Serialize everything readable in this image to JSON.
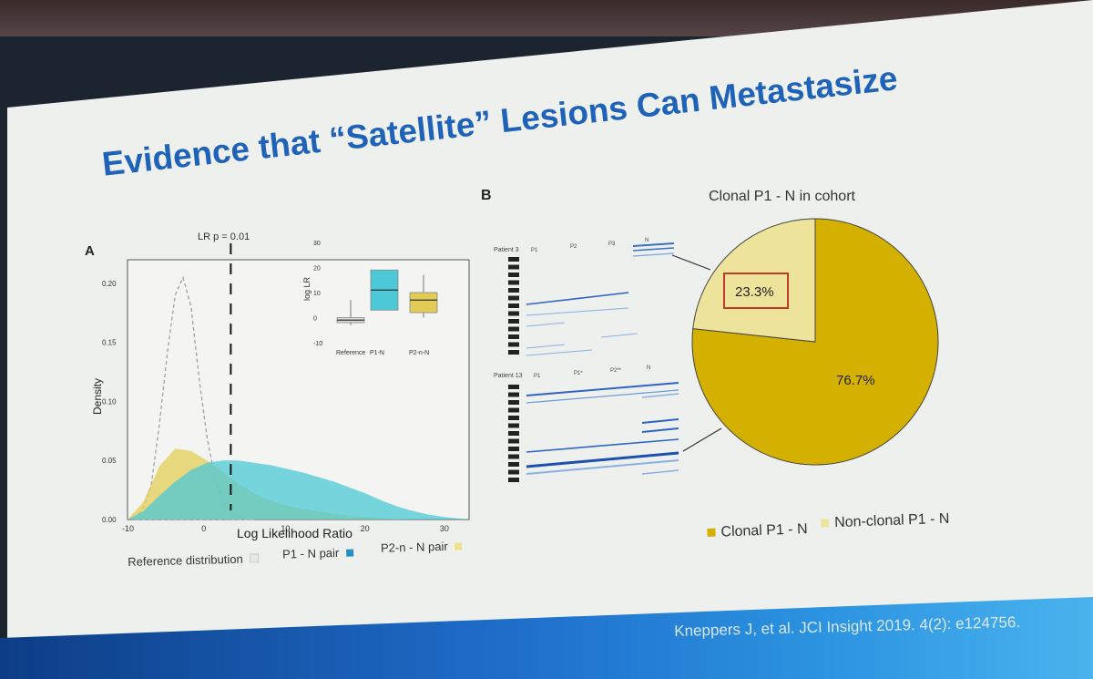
{
  "slide": {
    "title": "Evidence that “Satellite” Lesions Can Metastasize",
    "citation": "Kneppers J, et al. JCI Insight 2019. 4(2): e124756."
  },
  "panel_a": {
    "label": "A",
    "annotation": "LR p = 0.01",
    "legend": [
      "Reference distribution",
      "P1 - N pair",
      "P2-n - N pair"
    ]
  },
  "panel_b": {
    "label": "B",
    "patient_labels": [
      "Patient 3",
      "Patient 13"
    ],
    "column_labels_top": [
      "P1",
      "P2",
      "P3",
      "N"
    ],
    "column_labels_bottom": [
      "P1",
      "P1*",
      "P2**",
      "N"
    ]
  },
  "colors": {
    "reference": "#9a9a9a",
    "p1_n": "#4cc8d6",
    "p2n_n": "#e3cc56",
    "clonal": "#d4b100",
    "non_clonal": "#ede39a",
    "title": "#1f63b8",
    "highlight_box": "#c0392b"
  },
  "chart_data": [
    {
      "type": "area",
      "title": "",
      "xlabel": "Log Likelihood Ratio",
      "ylabel": "Density",
      "xlim": [
        -10,
        33
      ],
      "ylim": [
        0,
        0.22
      ],
      "x_ticks": [
        -10,
        0,
        10,
        20,
        30
      ],
      "y_ticks": [
        0.0,
        0.05,
        0.1,
        0.15,
        0.2
      ],
      "x_tick_labels": [
        "-10",
        "0",
        "10",
        "20",
        "30"
      ],
      "y_tick_labels": [
        "0.00",
        "0.05",
        "0.10",
        "0.15",
        "0.20"
      ],
      "vline": {
        "x": 3,
        "label": "LR p = 0.01"
      },
      "series": [
        {
          "name": "Reference distribution",
          "x": [
            -9,
            -8,
            -7,
            -6,
            -5,
            -4,
            -3,
            -2,
            -1,
            0,
            1,
            2,
            3,
            4,
            5,
            6
          ],
          "values": [
            0.0,
            0.01,
            0.03,
            0.08,
            0.14,
            0.19,
            0.205,
            0.18,
            0.12,
            0.07,
            0.035,
            0.015,
            0.006,
            0.002,
            0.0,
            0.0
          ]
        },
        {
          "name": "P2-n - N pair",
          "x": [
            -10,
            -8,
            -6,
            -4,
            -2,
            0,
            2,
            4,
            6,
            8,
            10,
            12,
            14,
            16,
            18,
            20,
            22,
            25
          ],
          "values": [
            0.0,
            0.015,
            0.045,
            0.06,
            0.058,
            0.05,
            0.04,
            0.03,
            0.022,
            0.016,
            0.012,
            0.009,
            0.007,
            0.005,
            0.003,
            0.002,
            0.001,
            0.0
          ]
        },
        {
          "name": "P1 - N pair",
          "x": [
            -10,
            -8,
            -6,
            -4,
            -2,
            0,
            2,
            4,
            6,
            8,
            10,
            12,
            14,
            16,
            18,
            20,
            22,
            24,
            26,
            28,
            30,
            33
          ],
          "values": [
            0.0,
            0.007,
            0.02,
            0.032,
            0.042,
            0.048,
            0.05,
            0.05,
            0.048,
            0.046,
            0.043,
            0.04,
            0.036,
            0.032,
            0.027,
            0.022,
            0.016,
            0.011,
            0.007,
            0.004,
            0.002,
            0.0
          ]
        }
      ],
      "legend": "bottom"
    },
    {
      "type": "box",
      "ylabel": "log LR",
      "ylim": [
        -10,
        30
      ],
      "y_ticks": [
        -10,
        0,
        10,
        20,
        30
      ],
      "y_tick_labels": [
        "-10",
        "0",
        "10",
        "20",
        "30"
      ],
      "categories": [
        "Reference",
        "P1-N",
        "P2-n-N"
      ],
      "boxes": [
        {
          "name": "Reference",
          "whisker_low": -3,
          "q1": -2,
          "median": -1,
          "q3": 0,
          "whisker_high": 7
        },
        {
          "name": "P1-N",
          "whisker_low": 3,
          "q1": 3,
          "median": 11,
          "q3": 19,
          "whisker_high": 19
        },
        {
          "name": "P2-n-N",
          "whisker_low": 0,
          "q1": 2,
          "median": 7,
          "q3": 10,
          "whisker_high": 17
        }
      ]
    },
    {
      "type": "pie",
      "title": "Clonal P1 - N in cohort",
      "categories": [
        "Non-clonal P1 - N",
        "Clonal P1 - N"
      ],
      "values": [
        23.3,
        76.7
      ],
      "labels": [
        "23.3%",
        "76.7%"
      ],
      "legend_labels": [
        "Clonal P1 - N",
        "Non-clonal P1 - N"
      ],
      "legend": "bottom"
    }
  ]
}
